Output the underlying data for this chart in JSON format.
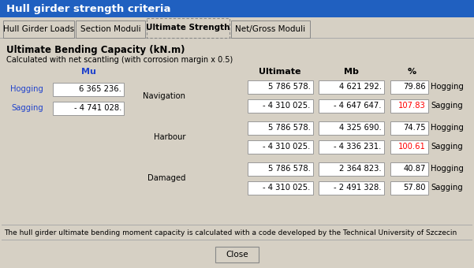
{
  "title": "Hull girder strength criteria",
  "title_bg": "#2060c0",
  "title_fg": "white",
  "tabs": [
    "Hull Girder Loads",
    "Section Moduli",
    "Ultimate Strength",
    "Net/Gross Moduli"
  ],
  "active_tab": 2,
  "section_title": "Ultimate Bending Capacity (kN.m)",
  "section_subtitle": "Calculated with net scantling (with corrosion margin x 0.5)",
  "mu_label": "Mu",
  "mu_hogging_label": "Hogging",
  "mu_sagging_label": "Sagging",
  "mu_hogging_value": "6 365 236.",
  "mu_sagging_value": "- 4 741 028.",
  "col_headers": [
    "Ultimate",
    "Mb",
    "%"
  ],
  "row_groups": [
    {
      "label": "Navigation",
      "rows": [
        {
          "ultimate": "5 786 578.",
          "mb": "4 621 292.",
          "pct": "79.86",
          "pct_red": false,
          "side": "Hogging"
        },
        {
          "ultimate": "- 4 310 025.",
          "mb": "- 4 647 647.",
          "pct": "107.83",
          "pct_red": true,
          "side": "Sagging"
        }
      ]
    },
    {
      "label": "Harbour",
      "rows": [
        {
          "ultimate": "5 786 578.",
          "mb": "4 325 690.",
          "pct": "74.75",
          "pct_red": false,
          "side": "Hogging"
        },
        {
          "ultimate": "- 4 310 025.",
          "mb": "- 4 336 231.",
          "pct": "100.61",
          "pct_red": true,
          "side": "Sagging"
        }
      ]
    },
    {
      "label": "Damaged",
      "rows": [
        {
          "ultimate": "5 786 578.",
          "mb": "2 364 823.",
          "pct": "40.87",
          "pct_red": false,
          "side": "Hogging"
        },
        {
          "ultimate": "- 4 310 025.",
          "mb": "- 2 491 328.",
          "pct": "57.80",
          "pct_red": false,
          "side": "Sagging"
        }
      ]
    }
  ],
  "footer_text": "The hull girder ultimate bending moment capacity is calculated with a code developed by the Technical University of Szczecin",
  "close_button": "Close",
  "bg_color": "#d6d0c4",
  "content_bg": "#d6d0c4",
  "box_bg": "white",
  "tab_border": "#999999"
}
